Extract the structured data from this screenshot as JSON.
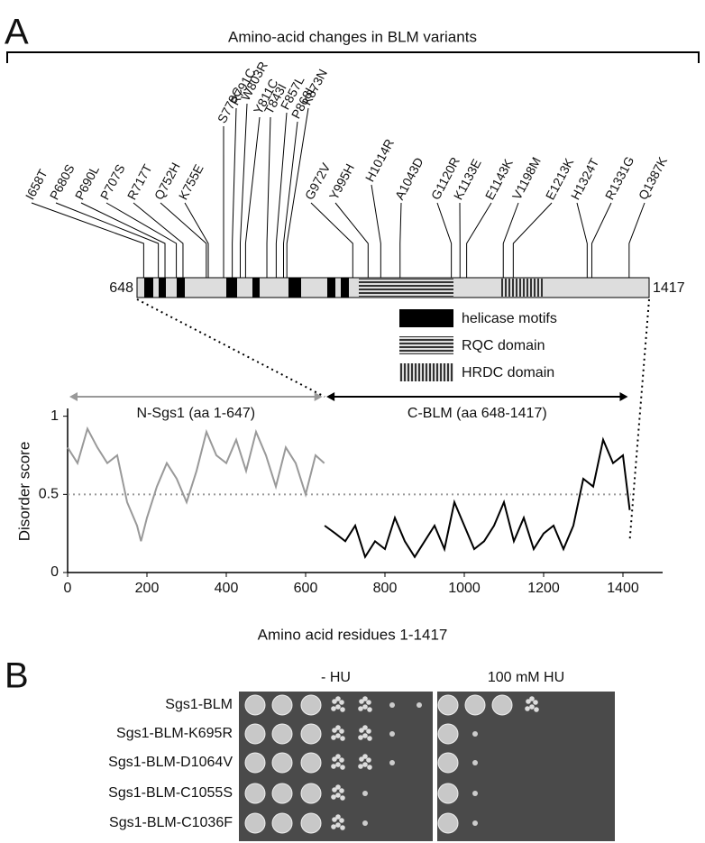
{
  "panel_a": {
    "label": "A",
    "title": "Amino-acid changes in BLM  variants",
    "map": {
      "start": 648,
      "end": 1417
    },
    "mutations": [
      {
        "label": "I658T",
        "position": 658
      },
      {
        "label": "P680S",
        "position": 680
      },
      {
        "label": "P690L",
        "position": 690
      },
      {
        "label": "P707S",
        "position": 707
      },
      {
        "label": "R717T",
        "position": 717
      },
      {
        "label": "Q752H",
        "position": 752
      },
      {
        "label": "K755E",
        "position": 755
      },
      {
        "label": "S778C",
        "position": 778
      },
      {
        "label": "R791C",
        "position": 791
      },
      {
        "label": "W803R",
        "position": 803
      },
      {
        "label": "Y811C",
        "position": 811
      },
      {
        "label": "T843I",
        "position": 843
      },
      {
        "label": "F857L",
        "position": 857
      },
      {
        "label": "P868L",
        "position": 868
      },
      {
        "label": "K873N",
        "position": 873
      },
      {
        "label": "G972V",
        "position": 972
      },
      {
        "label": "Y995H",
        "position": 995
      },
      {
        "label": "H1014R",
        "position": 1014
      },
      {
        "label": "A1043D",
        "position": 1043
      },
      {
        "label": "G1120R",
        "position": 1120
      },
      {
        "label": "K1133E",
        "position": 1133
      },
      {
        "label": "E1143K",
        "position": 1143
      },
      {
        "label": "V1198M",
        "position": 1198
      },
      {
        "label": "E1213K",
        "position": 1213
      },
      {
        "label": "H1324T",
        "position": 1324
      },
      {
        "label": "R1331G",
        "position": 1331
      },
      {
        "label": "Q1387K",
        "position": 1387
      }
    ],
    "legend": [
      "helicase motifs",
      "RQC domain",
      "HRDC domain"
    ]
  },
  "chart_data": {
    "type": "line",
    "y_label": "Disorder score",
    "x_label": "Amino acid residues 1-1417",
    "xlim": [
      0,
      1500
    ],
    "xticks": [
      0,
      200,
      400,
      600,
      800,
      1000,
      1200,
      1400
    ],
    "ylim": [
      0,
      1.05
    ],
    "yticks": [
      0,
      0.5,
      1
    ],
    "reference_line": 0.5,
    "series": [
      {
        "name": "N-Sgs1 (aa 1-647)",
        "color": "#999999",
        "x": [
          0,
          25,
          50,
          75,
          100,
          125,
          150,
          175,
          185,
          200,
          225,
          250,
          275,
          300,
          325,
          350,
          375,
          400,
          425,
          450,
          475,
          500,
          525,
          550,
          575,
          600,
          625,
          647
        ],
        "values": [
          0.8,
          0.7,
          0.92,
          0.8,
          0.7,
          0.75,
          0.45,
          0.3,
          0.2,
          0.35,
          0.55,
          0.7,
          0.6,
          0.45,
          0.65,
          0.9,
          0.75,
          0.7,
          0.85,
          0.65,
          0.9,
          0.75,
          0.55,
          0.8,
          0.7,
          0.5,
          0.75,
          0.7
        ]
      },
      {
        "name": "C-BLM  (aa 648-1417)",
        "color": "#000000",
        "x": [
          648,
          675,
          700,
          725,
          750,
          775,
          800,
          825,
          850,
          875,
          900,
          925,
          950,
          975,
          1000,
          1025,
          1050,
          1075,
          1100,
          1125,
          1150,
          1175,
          1200,
          1225,
          1250,
          1275,
          1300,
          1325,
          1350,
          1375,
          1400,
          1417
        ],
        "values": [
          0.3,
          0.25,
          0.2,
          0.3,
          0.1,
          0.2,
          0.15,
          0.35,
          0.2,
          0.1,
          0.2,
          0.3,
          0.15,
          0.45,
          0.3,
          0.15,
          0.2,
          0.3,
          0.45,
          0.2,
          0.35,
          0.15,
          0.25,
          0.3,
          0.15,
          0.3,
          0.6,
          0.55,
          0.85,
          0.7,
          0.75,
          0.4
        ]
      }
    ]
  },
  "panel_b": {
    "label": "B",
    "conditions": [
      "-  HU",
      "100 mM HU"
    ],
    "strains": [
      "Sgs1-BLM",
      "Sgs1-BLM-K695R",
      "Sgs1-BLM-D1064V",
      "Sgs1-BLM-C1055S",
      "Sgs1-BLM-C1036F"
    ]
  }
}
